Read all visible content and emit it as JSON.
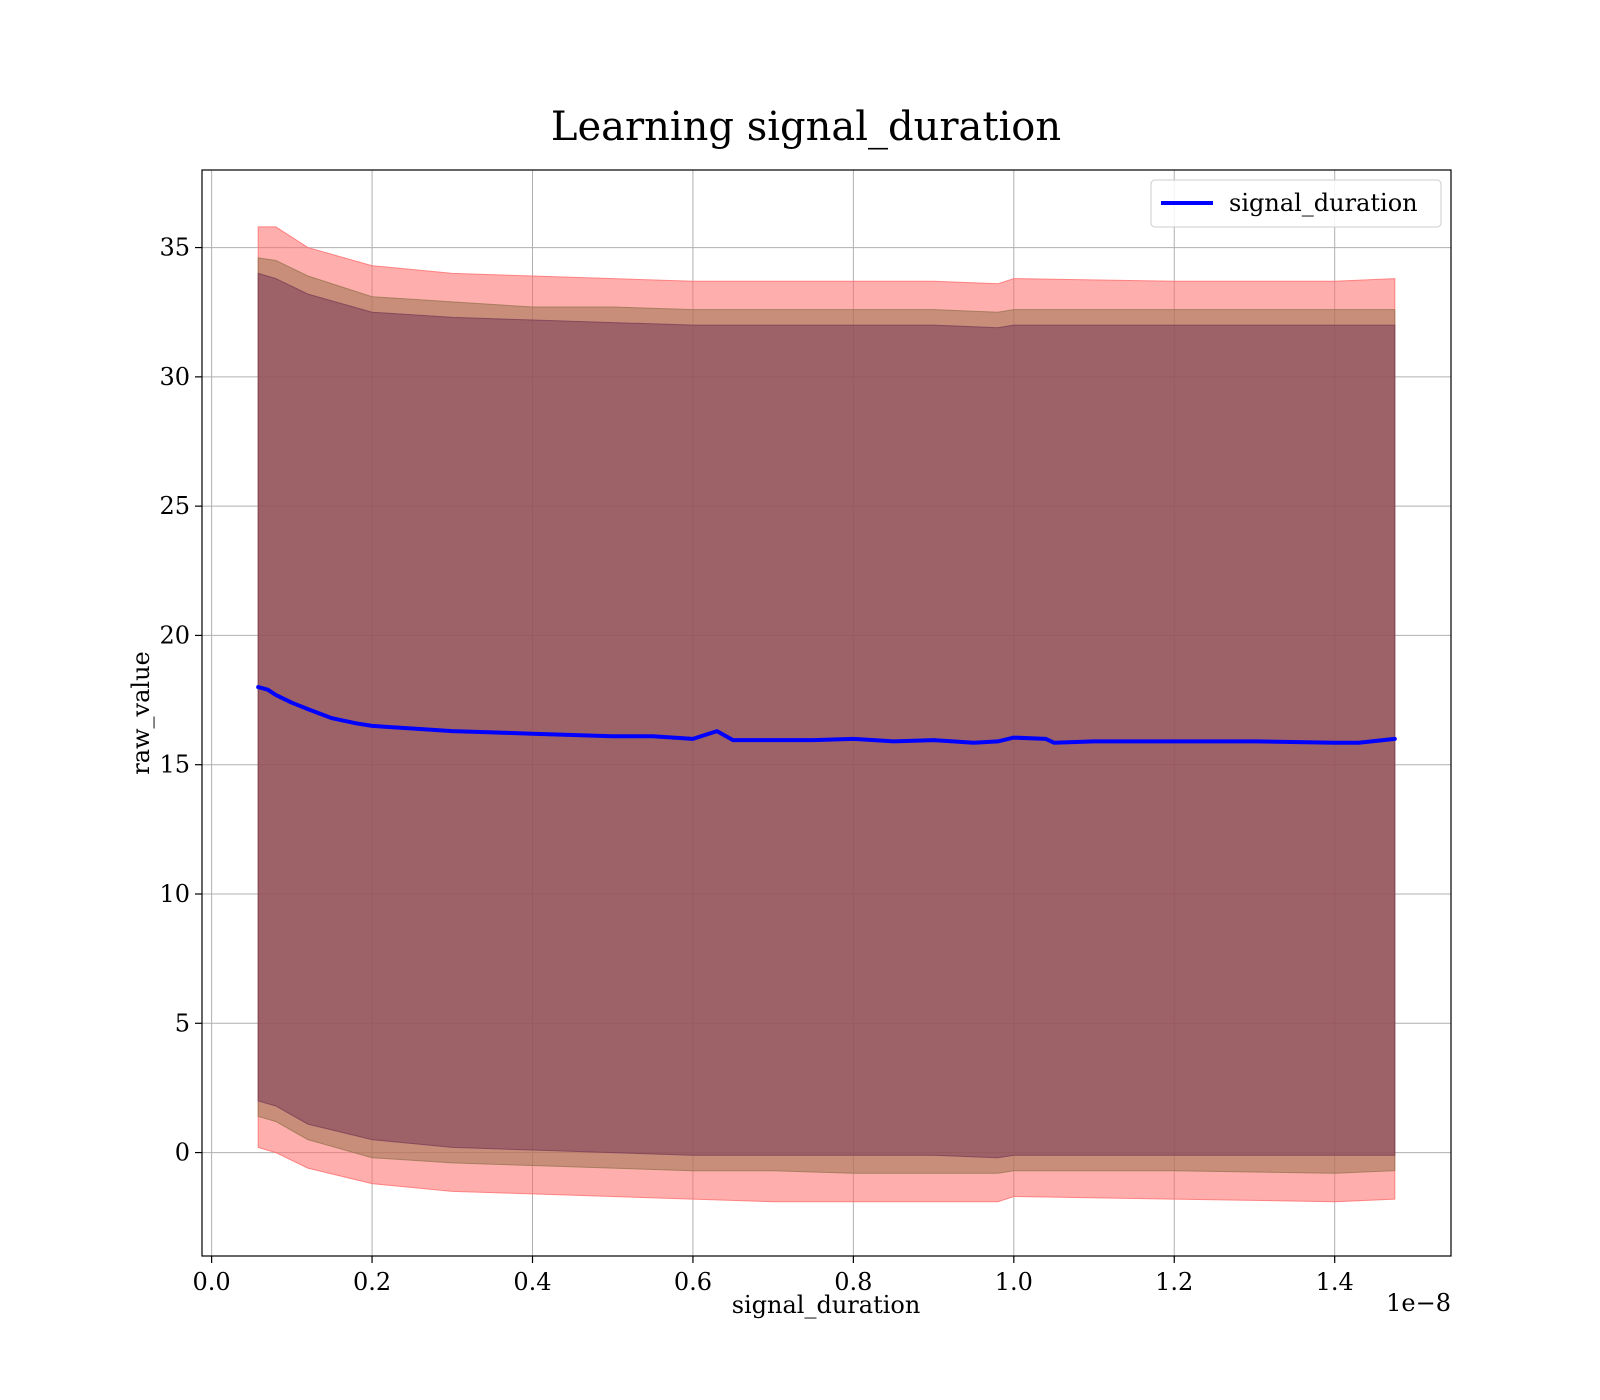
{
  "chart_data": {
    "type": "line",
    "title": "Learning signal_duration",
    "xlabel": "signal_duration",
    "ylabel": "raw_value",
    "x_offset_label": "1e−8",
    "xlim": [
      -0.012,
      1.545
    ],
    "ylim": [
      -4,
      38
    ],
    "xticks": [
      0.0,
      0.2,
      0.4,
      0.6,
      0.8,
      1.0,
      1.2,
      1.4
    ],
    "xtick_labels": [
      "0.0",
      "0.2",
      "0.4",
      "0.6",
      "0.8",
      "1.0",
      "1.2",
      "1.4"
    ],
    "yticks": [
      0,
      5,
      10,
      15,
      20,
      25,
      30,
      35
    ],
    "ytick_labels": [
      "0",
      "5",
      "10",
      "15",
      "20",
      "25",
      "30",
      "35"
    ],
    "grid": true,
    "legend": {
      "position": "top-right",
      "entries": [
        "signal_duration"
      ]
    },
    "series": [
      {
        "name": "signal_duration",
        "color": "#0000ff",
        "x": [
          0.058,
          0.07,
          0.08,
          0.1,
          0.12,
          0.15,
          0.18,
          0.2,
          0.25,
          0.3,
          0.35,
          0.4,
          0.45,
          0.5,
          0.55,
          0.6,
          0.63,
          0.65,
          0.7,
          0.75,
          0.8,
          0.85,
          0.9,
          0.95,
          0.98,
          1.0,
          1.04,
          1.05,
          1.1,
          1.2,
          1.3,
          1.4,
          1.43,
          1.475
        ],
        "y": [
          18.0,
          17.9,
          17.7,
          17.4,
          17.15,
          16.8,
          16.6,
          16.5,
          16.4,
          16.3,
          16.25,
          16.2,
          16.15,
          16.1,
          16.1,
          16.0,
          16.3,
          15.95,
          15.95,
          15.95,
          16.0,
          15.9,
          15.95,
          15.85,
          15.9,
          16.05,
          16.0,
          15.85,
          15.9,
          15.9,
          15.9,
          15.85,
          15.85,
          16.0
        ]
      }
    ],
    "bands": [
      {
        "color": "#ff6b6b",
        "opacity": 0.55,
        "x": [
          0.058,
          0.08,
          0.12,
          0.2,
          0.3,
          0.4,
          0.5,
          0.6,
          0.7,
          0.8,
          0.9,
          0.98,
          1.0,
          1.2,
          1.4,
          1.475
        ],
        "upper": [
          35.8,
          35.8,
          35.0,
          34.3,
          34.0,
          33.9,
          33.8,
          33.7,
          33.7,
          33.7,
          33.7,
          33.6,
          33.8,
          33.7,
          33.7,
          33.8
        ],
        "lower": [
          0.2,
          0.0,
          -0.6,
          -1.2,
          -1.5,
          -1.6,
          -1.7,
          -1.8,
          -1.9,
          -1.9,
          -1.9,
          -1.9,
          -1.7,
          -1.8,
          -1.9,
          -1.8
        ]
      },
      {
        "color": "#9a7550",
        "opacity": 0.55,
        "x": [
          0.058,
          0.08,
          0.12,
          0.2,
          0.3,
          0.4,
          0.5,
          0.6,
          0.7,
          0.8,
          0.9,
          0.98,
          1.0,
          1.2,
          1.4,
          1.475
        ],
        "upper": [
          34.6,
          34.5,
          33.9,
          33.1,
          32.9,
          32.7,
          32.7,
          32.6,
          32.6,
          32.6,
          32.6,
          32.5,
          32.6,
          32.6,
          32.6,
          32.6
        ],
        "lower": [
          1.4,
          1.2,
          0.5,
          -0.2,
          -0.4,
          -0.5,
          -0.6,
          -0.7,
          -0.7,
          -0.8,
          -0.8,
          -0.8,
          -0.7,
          -0.7,
          -0.8,
          -0.7
        ]
      },
      {
        "color": "#7a3e58",
        "opacity": 0.55,
        "x": [
          0.058,
          0.08,
          0.12,
          0.2,
          0.3,
          0.4,
          0.5,
          0.6,
          0.7,
          0.8,
          0.9,
          0.98,
          1.0,
          1.2,
          1.4,
          1.475
        ],
        "upper": [
          34.0,
          33.8,
          33.2,
          32.5,
          32.3,
          32.2,
          32.1,
          32.0,
          32.0,
          32.0,
          32.0,
          31.9,
          32.0,
          32.0,
          32.0,
          32.0
        ],
        "lower": [
          2.0,
          1.8,
          1.1,
          0.5,
          0.2,
          0.1,
          0.0,
          -0.1,
          -0.1,
          -0.1,
          -0.1,
          -0.2,
          -0.1,
          -0.1,
          -0.1,
          -0.1
        ]
      }
    ]
  }
}
